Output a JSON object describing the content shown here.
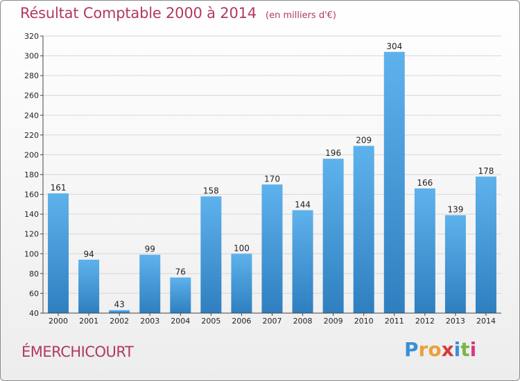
{
  "header": {
    "title": "Résultat Comptable 2000 à 2014",
    "subtitle": "(en milliers d'€)"
  },
  "footer": {
    "commune": "ÉMERCHICOURT",
    "logo_letters": [
      "P",
      "r",
      "o",
      "x",
      "i",
      "t",
      "i"
    ],
    "logo_colors": [
      "#3a8fd6",
      "#e8a23a",
      "#e8a23a",
      "#d63a3a",
      "#3a8fd6",
      "#7ab648",
      "#d63a7a"
    ]
  },
  "colors": {
    "bar_top": "#5eb2ec",
    "bar_bottom": "#2f7fc0",
    "grid": "#d6d6d6",
    "axis": "#444444",
    "text": "#222222"
  },
  "chart_data": {
    "type": "bar",
    "categories": [
      "2000",
      "2001",
      "2002",
      "2003",
      "2004",
      "2005",
      "2006",
      "2007",
      "2008",
      "2009",
      "2010",
      "2011",
      "2012",
      "2013",
      "2014"
    ],
    "values": [
      161,
      94,
      43,
      99,
      76,
      158,
      100,
      170,
      144,
      196,
      209,
      304,
      166,
      139,
      178
    ],
    "ylim": [
      40,
      320
    ],
    "yticks": [
      40,
      60,
      80,
      100,
      120,
      140,
      160,
      180,
      200,
      220,
      240,
      260,
      280,
      300,
      320
    ],
    "grid": true,
    "data_labels": true
  }
}
